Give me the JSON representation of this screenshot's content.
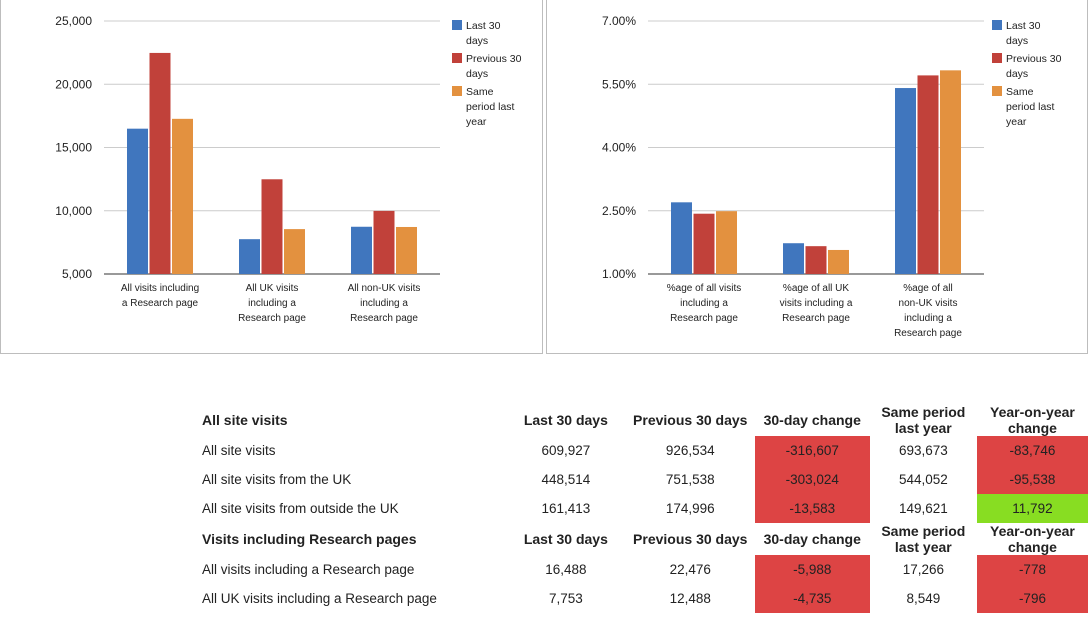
{
  "chart_data": [
    {
      "type": "bar",
      "categories": [
        [
          "All visits including",
          "a Research page"
        ],
        [
          "All UK visits",
          "including a",
          "Research page"
        ],
        [
          "All non-UK visits",
          "including a",
          "Research page"
        ]
      ],
      "series": [
        {
          "name": "Last 30 days",
          "color": "#4076be",
          "values": [
            16488,
            7753,
            8735
          ]
        },
        {
          "name": "Previous 30 days",
          "color": "#c1413a",
          "values": [
            22476,
            12488,
            9988
          ]
        },
        {
          "name": "Same period last year",
          "color": "#e3913f",
          "values": [
            17266,
            8549,
            8717
          ]
        }
      ],
      "legend_lines": [
        [
          "Last 30",
          "days"
        ],
        [
          "Previous 30",
          "days"
        ],
        [
          "Same",
          "period last",
          "year"
        ]
      ],
      "yticks": [
        "5,000",
        "10,000",
        "15,000",
        "20,000",
        "25,000"
      ],
      "ylim": [
        5000,
        25000
      ],
      "legend": "right",
      "grid": true
    },
    {
      "type": "bar",
      "categories": [
        [
          "%age of all visits",
          "including a",
          "Research page"
        ],
        [
          "%age of all UK",
          "visits including a",
          "Research page"
        ],
        [
          "%age of all",
          "non-UK visits",
          "including a",
          "Research page"
        ]
      ],
      "series": [
        {
          "name": "Last 30 days",
          "color": "#4076be",
          "values": [
            2.7,
            1.73,
            5.41
          ]
        },
        {
          "name": "Previous 30 days",
          "color": "#c1413a",
          "values": [
            2.43,
            1.66,
            5.71
          ]
        },
        {
          "name": "Same period last year",
          "color": "#e3913f",
          "values": [
            2.49,
            1.57,
            5.83
          ]
        }
      ],
      "legend_lines": [
        [
          "Last 30",
          "days"
        ],
        [
          "Previous 30",
          "days"
        ],
        [
          "Same",
          "period last",
          "year"
        ]
      ],
      "yticks": [
        "1.00%",
        "2.50%",
        "4.00%",
        "5.50%",
        "7.00%"
      ],
      "ylim": [
        1.0,
        7.0
      ],
      "legend": "right",
      "grid": true
    }
  ],
  "table": {
    "sections": [
      {
        "header": [
          "All site visits",
          "Last 30 days",
          "Previous 30 days",
          "30-day change",
          "Same period last year",
          "Year-on-year change"
        ],
        "rows": [
          {
            "label": "All site visits",
            "cells": [
              "609,927",
              "926,534",
              "-316,607",
              "693,673",
              "-83,746"
            ],
            "change_status": [
              "neg",
              "neg"
            ]
          },
          {
            "label": "All site visits from the UK",
            "cells": [
              "448,514",
              "751,538",
              "-303,024",
              "544,052",
              "-95,538"
            ],
            "change_status": [
              "neg",
              "neg"
            ]
          },
          {
            "label": "All site visits from outside the UK",
            "cells": [
              "161,413",
              "174,996",
              "-13,583",
              "149,621",
              "11,792"
            ],
            "change_status": [
              "neg",
              "pos"
            ]
          }
        ]
      },
      {
        "header": [
          "Visits including Research pages",
          "Last 30 days",
          "Previous 30 days",
          "30-day change",
          "Same period last year",
          "Year-on-year change"
        ],
        "rows": [
          {
            "label": "All visits including a Research page",
            "cells": [
              "16,488",
              "22,476",
              "-5,988",
              "17,266",
              "-778"
            ],
            "change_status": [
              "neg",
              "neg"
            ]
          },
          {
            "label": "All UK visits including a Research page",
            "cells": [
              "7,753",
              "12,488",
              "-4,735",
              "8,549",
              "-796"
            ],
            "change_status": [
              "neg",
              "neg"
            ]
          }
        ]
      }
    ]
  }
}
